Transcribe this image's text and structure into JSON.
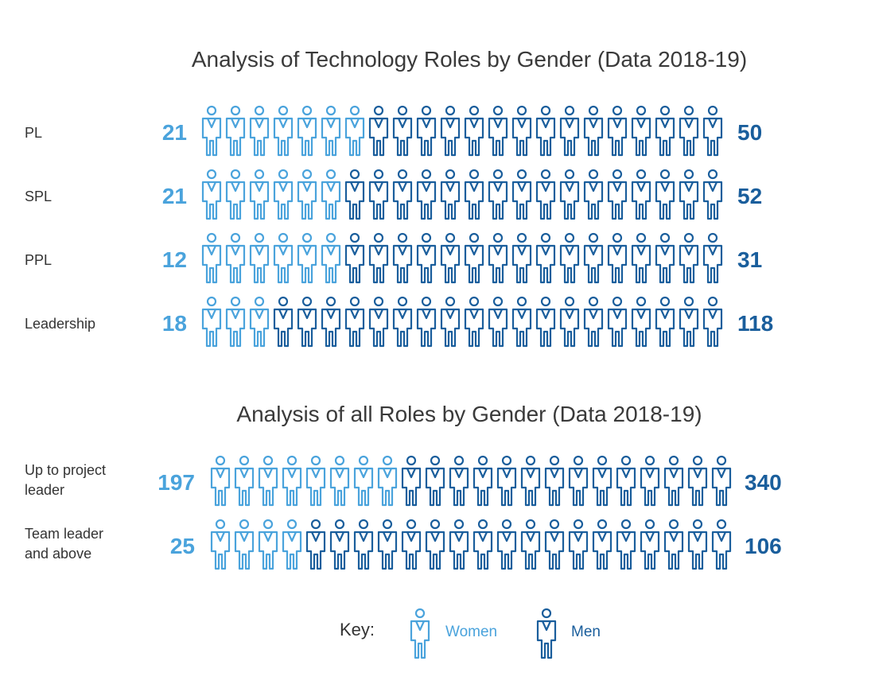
{
  "colors": {
    "women": "#4aa3dc",
    "men": "#1a5e9c",
    "title": "#3a3a3a",
    "label": "#333333"
  },
  "chart_data": [
    {
      "type": "pictograph",
      "title": "Analysis of Technology Roles by Gender (Data 2018-19)",
      "icons_per_row": 22,
      "categories": [
        "PL",
        "SPL",
        "PPL",
        "Leadership"
      ],
      "series": [
        {
          "name": "Women",
          "values": [
            21,
            21,
            12,
            18
          ]
        },
        {
          "name": "Men",
          "values": [
            50,
            52,
            31,
            118
          ]
        }
      ],
      "women_icon_counts": [
        7,
        6,
        6,
        3
      ]
    },
    {
      "type": "pictograph",
      "title": "Analysis of all Roles by Gender (Data 2018-19)",
      "icons_per_row": 22,
      "categories": [
        [
          "Up to project",
          "leader"
        ],
        [
          "Team leader",
          "and above"
        ]
      ],
      "series": [
        {
          "name": "Women",
          "values": [
            197,
            25
          ]
        },
        {
          "name": "Men",
          "values": [
            340,
            106
          ]
        }
      ],
      "women_icon_counts": [
        8,
        4
      ]
    }
  ],
  "legend": {
    "label": "Key:",
    "women": "Women",
    "men": "Men",
    "icons": [
      "person-icon-women",
      "person-icon-men"
    ]
  }
}
